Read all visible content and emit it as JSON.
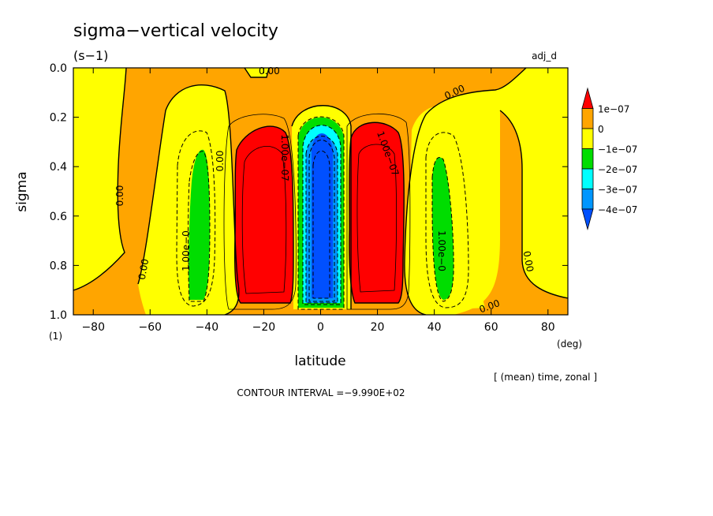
{
  "chart_data": {
    "type": "heatmap",
    "title": "sigma−vertical velocity",
    "units": "(s−1)",
    "experiment": "adj_d",
    "xlabel": "latitude",
    "xunits": "(deg)",
    "ylabel": "sigma",
    "yunits": "(1)",
    "xlim": [
      -87,
      87
    ],
    "ylim": [
      0.0,
      1.0
    ],
    "x_ticks": [
      -80,
      -60,
      -40,
      -20,
      0,
      20,
      40,
      60,
      80
    ],
    "y_ticks": [
      0.0,
      0.2,
      0.4,
      0.6,
      0.8,
      1.0
    ],
    "x_tick_labels": [
      "−80",
      "−60",
      "−40",
      "−20",
      "0",
      "20",
      "40",
      "60",
      "80"
    ],
    "y_tick_labels": [
      "0.0",
      "0.2",
      "0.4",
      "0.6",
      "0.8",
      "1.0"
    ],
    "colorbar": {
      "labels": [
        "1e−07",
        "0",
        "−1e−07",
        "−2e−07",
        "−3e−07",
        "−4e−07"
      ],
      "colors": [
        "#ff0000",
        "#ffa500",
        "#ffff00",
        "#00dd00",
        "#00ffff",
        "#0096ff",
        "#0050ff"
      ]
    },
    "regions": [
      {
        "level": "0 to 1e-07",
        "color": "#ffa500",
        "x": [
          -87,
          87
        ],
        "y": [
          0.0,
          1.0
        ]
      },
      {
        "level": "-1e-07 to 0",
        "color": "#ffff00",
        "x": [
          -55,
          -30
        ],
        "y": [
          0.07,
          0.97
        ]
      },
      {
        "level": "-1e-07 to 0",
        "color": "#ffff00",
        "x": [
          30,
          57
        ],
        "y": [
          0.09,
          0.97
        ]
      },
      {
        "level": "-2e-07 to -1e-07",
        "color": "#00dd00",
        "x": [
          -49,
          -40
        ],
        "y": [
          0.33,
          0.94
        ]
      },
      {
        "level": "-2e-07 to -1e-07",
        "color": "#00dd00",
        "x": [
          40,
          50
        ],
        "y": [
          0.35,
          0.94
        ]
      },
      {
        "level": ">1e-07",
        "color": "#ff0000",
        "x": [
          -32,
          -10
        ],
        "y": [
          0.23,
          0.94
        ]
      },
      {
        "level": ">1e-07",
        "color": "#ff0000",
        "x": [
          11,
          33
        ],
        "y": [
          0.23,
          0.94
        ]
      },
      {
        "level": "<-4e-07",
        "color": "#0050ff",
        "x": [
          -4,
          5
        ],
        "y": [
          0.27,
          0.93
        ]
      }
    ],
    "contour_labels": [
      "0.00",
      "0.00",
      "0.00",
      "0.00",
      "0.00",
      "0.00",
      "0.00",
      "1.00e−07",
      "1.00e−07",
      "1.00e−0",
      "1.00e−0"
    ],
    "source_note": "[ (mean) time, zonal ]",
    "contour_interval": "CONTOUR INTERVAL =−9.990E+02"
  }
}
